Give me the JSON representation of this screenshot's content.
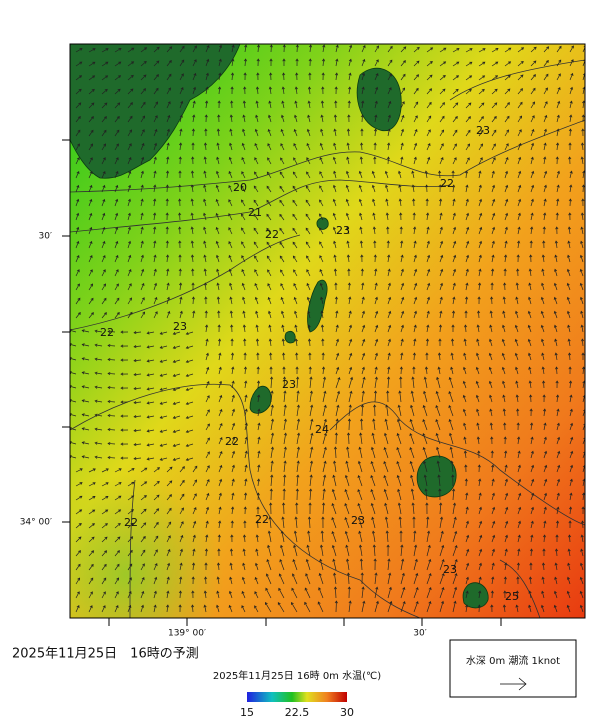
{
  "map": {
    "axis_labels": {
      "left": [
        "30′",
        "34° 00′"
      ],
      "bottom": [
        "139° 00′",
        "30′"
      ]
    },
    "contour_labels": [
      "20",
      "21",
      "22",
      "22",
      "23",
      "23",
      "22",
      "23",
      "23",
      "24",
      "22",
      "22",
      "22",
      "23",
      "23",
      "25"
    ],
    "forecast_time": "2025年11月25日　16時の予測",
    "colorbar": {
      "title": "2025年11月25日 16時 0m 水温(℃)",
      "ticks": [
        15,
        22.5,
        30
      ],
      "range": [
        15,
        30
      ]
    },
    "legend": {
      "text": "水深 0m 潮流 1knot"
    }
  }
}
